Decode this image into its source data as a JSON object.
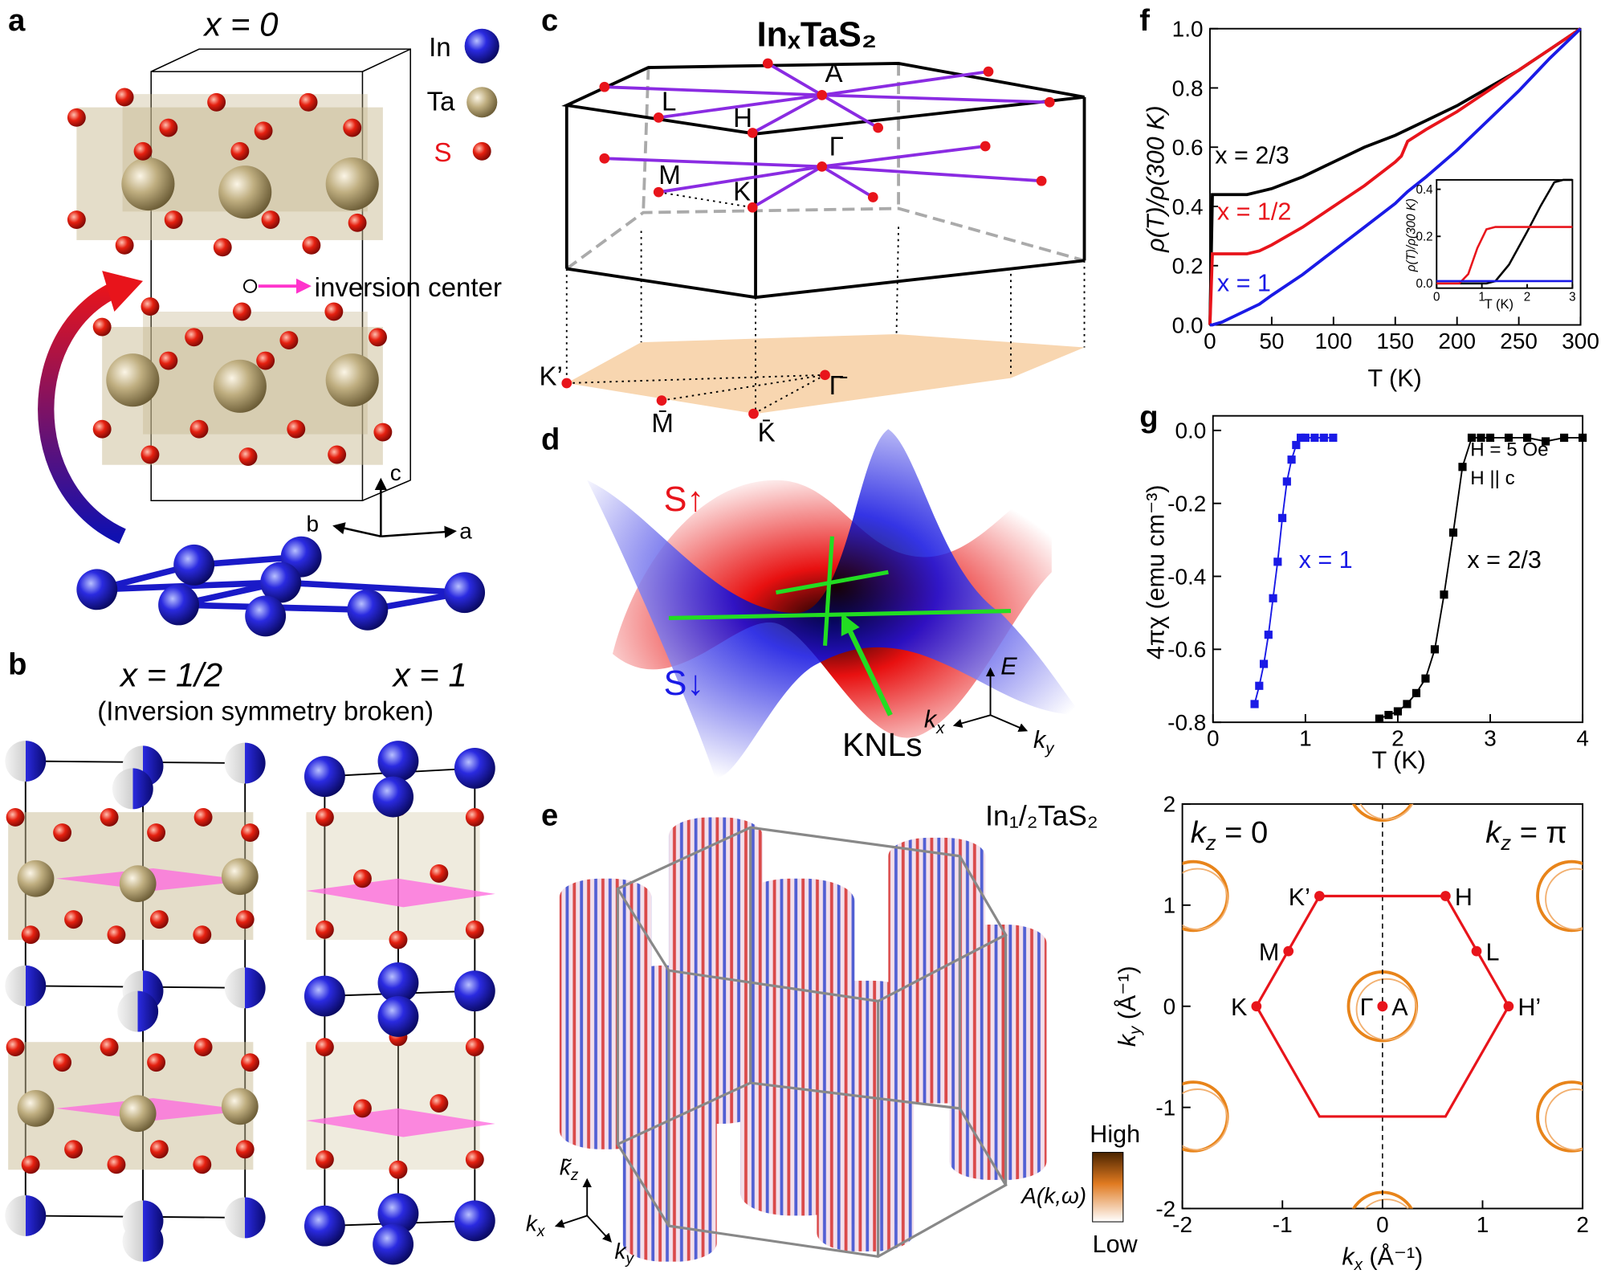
{
  "panels": {
    "a": {
      "label": "a",
      "title": "x = 0",
      "legend": [
        "In",
        "Ta",
        "S"
      ],
      "annotation": "inversion center",
      "axes": [
        "c",
        "b",
        "a"
      ]
    },
    "b": {
      "label": "b",
      "titles": [
        "x = 1/2",
        "x = 1"
      ],
      "subtitle": "(Inversion symmetry broken)"
    },
    "c": {
      "label": "c",
      "title": "InₓTaS₂",
      "points": [
        "A",
        "L",
        "H",
        "Γ",
        "M",
        "K",
        "K’",
        "Γ̄",
        "M̄",
        "K̄"
      ]
    },
    "d": {
      "label": "d",
      "bands": [
        "S↑",
        "S↓"
      ],
      "axes": {
        "e": "E",
        "kx": {
          "text": "k",
          "sub": "x"
        },
        "ky": {
          "text": "k",
          "sub": "y"
        }
      },
      "annotation": "KNLs"
    },
    "e": {
      "label": "e",
      "title": "In₁/₂TaS₂",
      "axes": {
        "kz": {
          "text": "k̃",
          "sub": "z"
        },
        "kx": {
          "text": "k",
          "sub": "x"
        },
        "ky": {
          "text": "k",
          "sub": "y"
        }
      },
      "colorbar": {
        "title": "A(k,ω)",
        "high": "High",
        "low": "Low"
      }
    }
  },
  "chart_data": [
    {
      "type": "line",
      "panel": "f",
      "xlabel": "T (K)",
      "ylabel": "ρ(T)/ρ(300 K)",
      "x": [
        0,
        2,
        10,
        20,
        30,
        40,
        50,
        75,
        100,
        125,
        150,
        155,
        160,
        175,
        200,
        225,
        250,
        275,
        300
      ],
      "series": [
        {
          "name": "x = 2/3",
          "color": "#000000",
          "values": [
            0,
            0.44,
            0.44,
            0.44,
            0.44,
            0.45,
            0.46,
            0.5,
            0.55,
            0.6,
            0.64,
            0.65,
            0.66,
            0.69,
            0.74,
            0.8,
            0.86,
            0.93,
            1.0
          ]
        },
        {
          "name": "x = 1/2",
          "color": "#e8141b",
          "values": [
            0,
            0.24,
            0.24,
            0.24,
            0.24,
            0.25,
            0.27,
            0.33,
            0.4,
            0.47,
            0.55,
            0.57,
            0.62,
            0.66,
            0.72,
            0.79,
            0.86,
            0.93,
            1.0
          ]
        },
        {
          "name": "x = 1",
          "color": "#1a1ae6",
          "values": [
            0,
            0,
            0.01,
            0.03,
            0.05,
            0.07,
            0.1,
            0.17,
            0.25,
            0.33,
            0.41,
            0.43,
            0.45,
            0.5,
            0.59,
            0.69,
            0.79,
            0.9,
            1.0
          ]
        }
      ],
      "xlim": [
        0,
        300
      ],
      "ylim": [
        0,
        1
      ],
      "xticks": [
        0,
        50,
        100,
        150,
        200,
        250,
        300
      ],
      "yticks": [
        {
          "value": 0,
          "label": "0.0"
        },
        0.2,
        0.4,
        0.6,
        0.8,
        {
          "value": 1,
          "label": "1.0"
        }
      ]
    },
    {
      "type": "line",
      "xlabel": "T (K)",
      "ylabel": "ρ(T)/ρ(300 K)",
      "x": [
        0,
        0.5,
        0.7,
        0.9,
        1.1,
        1.3,
        1.6,
        2.0,
        2.3,
        2.6,
        2.8,
        3.0
      ],
      "series": [
        {
          "color": "#000000",
          "values": [
            0,
            0,
            0,
            0,
            0,
            0.01,
            0.08,
            0.22,
            0.33,
            0.43,
            0.44,
            0.44
          ]
        },
        {
          "color": "#e8141b",
          "values": [
            0,
            0,
            0.04,
            0.15,
            0.23,
            0.24,
            0.24,
            0.24,
            0.24,
            0.24,
            0.24,
            0.24
          ]
        },
        {
          "color": "#1a1ae6",
          "values": [
            0.01,
            0.01,
            0.01,
            0.01,
            0.01,
            0.01,
            0.01,
            0.01,
            0.01,
            0.01,
            0.01,
            0.01
          ]
        }
      ],
      "xlim": [
        0,
        3
      ],
      "ylim": [
        -0.02,
        0.44
      ],
      "xticks": [
        0,
        1,
        2,
        3
      ],
      "yticks": [
        {
          "value": 0,
          "label": "0.0"
        },
        0.2,
        0.4
      ]
    },
    {
      "type": "scatter",
      "panel": "g",
      "xlabel": "T (K)",
      "ylabel": "4πχ (emu cm⁻³)",
      "annotations": [
        "H = 5 Oe",
        "H || c"
      ],
      "series": [
        {
          "name": "x = 1",
          "color": "#1a1ae6",
          "x": [
            0.45,
            0.5,
            0.55,
            0.6,
            0.65,
            0.7,
            0.75,
            0.8,
            0.85,
            0.9,
            0.95,
            1.0,
            1.1,
            1.2,
            1.3
          ],
          "values": [
            -0.75,
            -0.7,
            -0.64,
            -0.56,
            -0.46,
            -0.36,
            -0.24,
            -0.14,
            -0.08,
            -0.04,
            -0.02,
            -0.02,
            -0.02,
            -0.02,
            -0.02
          ]
        },
        {
          "name": "x = 2/3",
          "color": "#000000",
          "x": [
            1.8,
            1.9,
            2.0,
            2.1,
            2.2,
            2.3,
            2.4,
            2.5,
            2.6,
            2.7,
            2.8,
            2.9,
            3.0,
            3.2,
            3.4,
            3.6,
            3.8,
            4.0
          ],
          "values": [
            -0.79,
            -0.78,
            -0.77,
            -0.75,
            -0.72,
            -0.68,
            -0.6,
            -0.45,
            -0.28,
            -0.1,
            -0.02,
            -0.02,
            -0.02,
            -0.02,
            -0.02,
            -0.03,
            -0.02,
            -0.02
          ]
        }
      ],
      "xlim": [
        0,
        4
      ],
      "ylim": [
        -0.8,
        0.04
      ],
      "xticks": [
        0,
        1,
        2,
        3,
        4
      ],
      "yticks": [
        {
          "value": 0,
          "label": "0.0"
        },
        -0.2,
        -0.4,
        -0.6,
        -0.8
      ]
    },
    {
      "type": "map",
      "xlabel": {
        "text": "k",
        "sub": "x",
        "rest": " (Å⁻¹)"
      },
      "ylabel": {
        "text": "k",
        "sub": "y",
        "rest": " (Å⁻¹)"
      },
      "annotations": [
        {
          "text": "k",
          "sub": "z",
          "rest": " = 0"
        },
        {
          "text": "k",
          "sub": "z",
          "rest": " = π"
        }
      ],
      "hexagon": {
        "color": "#e8141b",
        "x": [
          -0.63,
          0.63,
          1.26,
          0.63,
          -0.63,
          -1.26
        ],
        "y": [
          1.09,
          1.09,
          0,
          -1.09,
          -1.09,
          0
        ]
      },
      "points": [
        {
          "label": "K’",
          "x": -0.63,
          "y": 1.09
        },
        {
          "label": "H",
          "x": 0.63,
          "y": 1.09
        },
        {
          "label": "M",
          "x": -0.94,
          "y": 0.545
        },
        {
          "label": "L",
          "x": 0.94,
          "y": 0.545
        },
        {
          "label": "K",
          "x": -1.26,
          "y": 0
        },
        {
          "label": "H’",
          "x": 1.26,
          "y": 0
        },
        {
          "label": "Γ",
          "x": 0,
          "y": 0
        },
        {
          "label": "A",
          "x": 0,
          "y": 0
        }
      ],
      "xlim": [
        -2,
        2
      ],
      "ylim": [
        -2,
        2
      ],
      "xticks": [
        -2,
        -1,
        0,
        1,
        2
      ],
      "yticks": [
        -2,
        -1,
        0,
        1,
        2
      ]
    }
  ]
}
